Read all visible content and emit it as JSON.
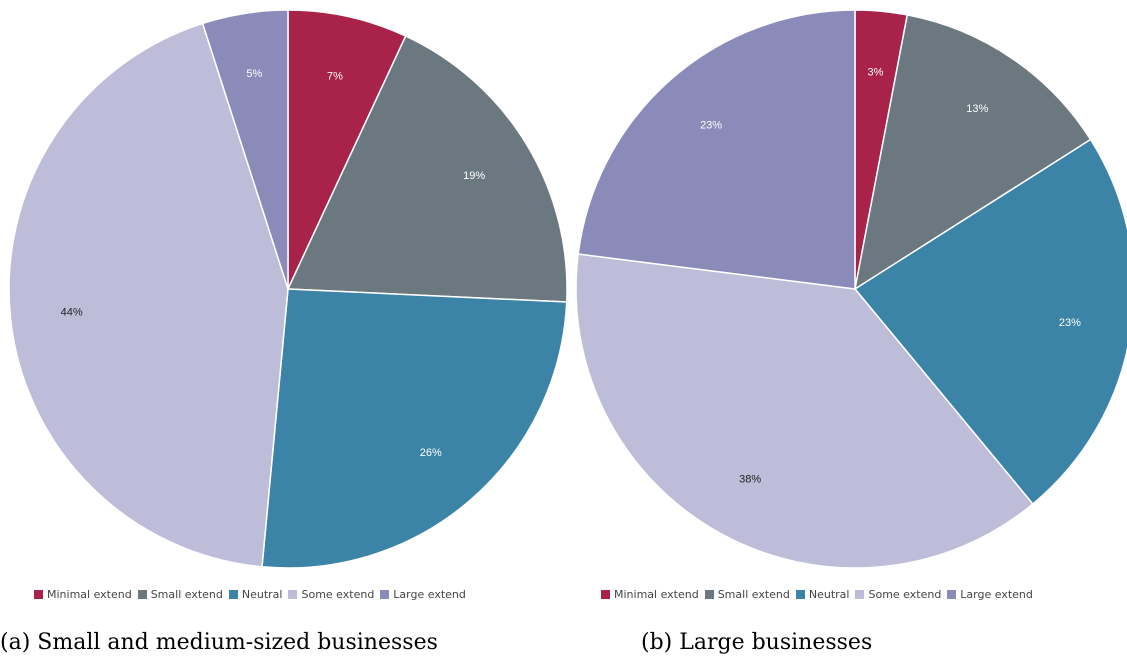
{
  "colors": {
    "minimal": "#a8224a",
    "small": "#6b7880",
    "neutral": "#3b84a8",
    "some": "#bdbdda",
    "large": "#8b8bba",
    "label_dark": "#222222",
    "label_light": "#ffffff"
  },
  "chart_data": [
    {
      "type": "pie",
      "caption": "(a) Small and medium-sized businesses",
      "categories": [
        "Minimal extend",
        "Small extend",
        "Neutral",
        "Some extend",
        "Large extend"
      ],
      "values": [
        7,
        19,
        26,
        44,
        5
      ],
      "labels": [
        "7%",
        "19%",
        "26%",
        "44%",
        "5%"
      ],
      "legend_position": "bottom"
    },
    {
      "type": "pie",
      "caption": "(b) Large businesses",
      "categories": [
        "Minimal extend",
        "Small extend",
        "Neutral",
        "Some extend",
        "Large extend"
      ],
      "values": [
        3,
        13,
        23,
        38,
        23
      ],
      "labels": [
        "3%",
        "13%",
        "23%",
        "38%",
        "23%"
      ],
      "legend_position": "bottom"
    }
  ]
}
